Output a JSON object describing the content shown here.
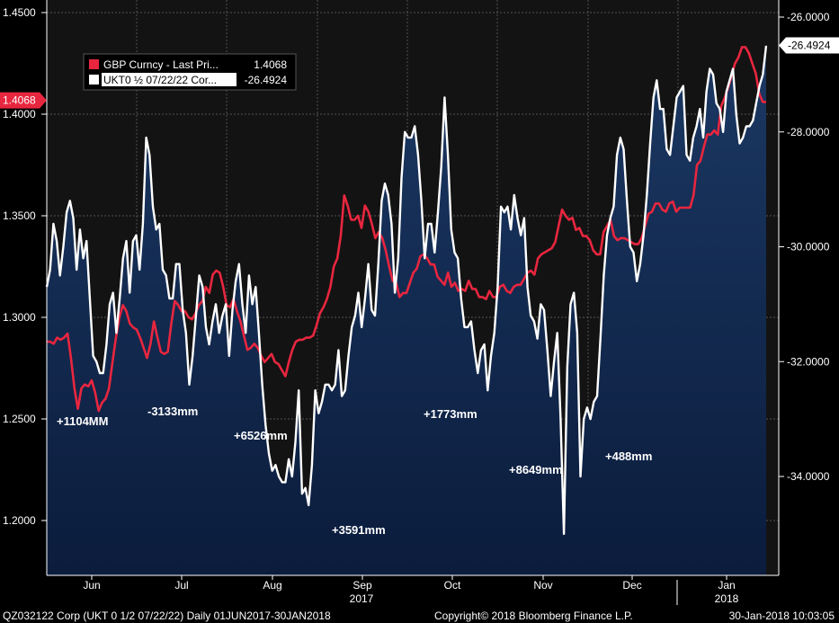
{
  "chart_data": {
    "type": "line",
    "left_axis": {
      "ylim": [
        1.17,
        1.455
      ],
      "ticks": [
        "1.4500",
        "1.4000",
        "1.3500",
        "1.3000",
        "1.2500",
        "1.2000"
      ],
      "tick_values": [
        1.45,
        1.4,
        1.35,
        1.3,
        1.25,
        1.2
      ],
      "last_value_label": "1.4068",
      "last_value": 1.4068
    },
    "right_axis": {
      "ylim": [
        -35.6,
        -25.8
      ],
      "ticks": [
        "-26.0000",
        "-28.0000",
        "-30.0000",
        "-32.0000",
        "-34.0000"
      ],
      "tick_values": [
        -26,
        -28,
        -30,
        -32,
        -34
      ],
      "last_value_label": "-26.4924",
      "last_value": -26.4924
    },
    "x_axis": {
      "months": [
        "Jun",
        "Jul",
        "Aug",
        "Sep",
        "Oct",
        "Nov",
        "Dec",
        "Jan"
      ],
      "years": [
        "2017",
        "2018"
      ]
    },
    "legend": {
      "position": "top-left",
      "entries": [
        {
          "name": "GBP Curncy - Last Pri...",
          "value": "1.4068",
          "color": "#e8263f"
        },
        {
          "name": "UKT0 ½ 07/22/22 Cor...",
          "value": "-26.4924",
          "color": "#ffffff"
        }
      ]
    },
    "series": [
      {
        "name": "GBP Curncy",
        "axis": "left",
        "color": "#e8263f",
        "values": [
          1.288,
          1.288,
          1.287,
          1.29,
          1.289,
          1.29,
          1.292,
          1.28,
          1.265,
          1.255,
          1.265,
          1.267,
          1.266,
          1.269,
          1.263,
          1.254,
          1.258,
          1.26,
          1.265,
          1.278,
          1.29,
          1.3,
          1.306,
          1.303,
          1.297,
          1.295,
          1.294,
          1.29,
          1.285,
          1.28,
          1.287,
          1.298,
          1.29,
          1.283,
          1.282,
          1.283,
          1.297,
          1.308,
          1.306,
          1.303,
          1.303,
          1.3,
          1.299,
          1.302,
          1.306,
          1.308,
          1.315,
          1.312,
          1.321,
          1.323,
          1.322,
          1.315,
          1.306,
          1.305,
          1.309,
          1.303,
          1.298,
          1.291,
          1.284,
          1.285,
          1.287,
          1.285,
          1.281,
          1.278,
          1.28,
          1.282,
          1.278,
          1.277,
          1.274,
          1.271,
          1.278,
          1.284,
          1.288,
          1.289,
          1.289,
          1.29,
          1.29,
          1.291,
          1.296,
          1.302,
          1.305,
          1.309,
          1.315,
          1.325,
          1.329,
          1.34,
          1.36,
          1.355,
          1.348,
          1.348,
          1.35,
          1.344,
          1.355,
          1.352,
          1.346,
          1.339,
          1.342,
          1.339,
          1.333,
          1.325,
          1.318,
          1.317,
          1.31,
          1.312,
          1.312,
          1.317,
          1.322,
          1.324,
          1.33,
          1.331,
          1.329,
          1.326,
          1.326,
          1.32,
          1.318,
          1.316,
          1.322,
          1.315,
          1.317,
          1.313,
          1.314,
          1.313,
          1.318,
          1.314,
          1.314,
          1.31,
          1.31,
          1.309,
          1.313,
          1.31,
          1.31,
          1.315,
          1.316,
          1.313,
          1.312,
          1.315,
          1.316,
          1.316,
          1.319,
          1.322,
          1.323,
          1.321,
          1.329,
          1.331,
          1.332,
          1.333,
          1.334,
          1.337,
          1.345,
          1.353,
          1.35,
          1.348,
          1.349,
          1.343,
          1.344,
          1.34,
          1.34,
          1.338,
          1.333,
          1.331,
          1.331,
          1.342,
          1.345,
          1.348,
          1.34,
          1.338,
          1.339,
          1.339,
          1.338,
          1.337,
          1.336,
          1.336,
          1.339,
          1.345,
          1.351,
          1.352,
          1.356,
          1.356,
          1.353,
          1.352,
          1.356,
          1.357,
          1.352,
          1.354,
          1.354,
          1.354,
          1.354,
          1.36,
          1.375,
          1.377,
          1.384,
          1.39,
          1.39,
          1.392,
          1.39,
          1.404,
          1.408,
          1.413,
          1.419,
          1.425,
          1.428,
          1.433,
          1.433,
          1.43,
          1.425,
          1.42,
          1.41,
          1.406,
          1.406
        ]
      },
      {
        "name": "UKT0 ½ 07/22/22 Corp",
        "axis": "right",
        "color": "#ffffff",
        "values": [
          -30.7,
          -30.4,
          -29.6,
          -29.9,
          -30.5,
          -30.0,
          -29.4,
          -29.2,
          -29.5,
          -30.4,
          -29.7,
          -30.2,
          -29.9,
          -30.9,
          -31.9,
          -32.0,
          -32.2,
          -32.2,
          -31.7,
          -31.0,
          -30.8,
          -31.5,
          -30.9,
          -30.2,
          -29.9,
          -30.8,
          -29.9,
          -29.8,
          -30.4,
          -29.6,
          -28.1,
          -28.4,
          -29.3,
          -29.7,
          -29.6,
          -30.4,
          -30.5,
          -30.9,
          -30.9,
          -30.3,
          -30.3,
          -31.1,
          -31.5,
          -32.4,
          -31.9,
          -31.2,
          -30.5,
          -30.7,
          -31.4,
          -31.7,
          -31.3,
          -31.0,
          -31.5,
          -31.2,
          -31.0,
          -31.9,
          -31.1,
          -30.6,
          -30.3,
          -31.0,
          -31.5,
          -30.5,
          -31.0,
          -30.7,
          -31.5,
          -32.4,
          -33.1,
          -33.6,
          -33.9,
          -33.8,
          -34.0,
          -34.1,
          -34.1,
          -33.7,
          -34.0,
          -33.4,
          -32.5,
          -34.3,
          -34.2,
          -34.5,
          -33.8,
          -32.5,
          -32.9,
          -32.7,
          -32.4,
          -32.4,
          -32.5,
          -32.4,
          -31.8,
          -32.6,
          -32.5,
          -31.9,
          -31.4,
          -31.2,
          -30.8,
          -31.4,
          -30.9,
          -30.3,
          -31.1,
          -31.2,
          -30.3,
          -29.2,
          -28.9,
          -29.1,
          -29.6,
          -30.8,
          -30.2,
          -28.8,
          -28.0,
          -28.1,
          -28.1,
          -27.9,
          -28.4,
          -29.2,
          -30.2,
          -29.6,
          -29.6,
          -30.1,
          -29.4,
          -28.6,
          -27.4,
          -28.4,
          -29.7,
          -30.1,
          -30.2,
          -30.9,
          -31.4,
          -31.4,
          -31.3,
          -31.8,
          -32.2,
          -31.8,
          -31.7,
          -32.5,
          -31.9,
          -31.5,
          -30.7,
          -29.3,
          -29.4,
          -29.3,
          -29.7,
          -29.1,
          -29.5,
          -29.8,
          -29.5,
          -30.7,
          -31.2,
          -31.3,
          -31.6,
          -31.0,
          -31.1,
          -31.8,
          -32.6,
          -32.0,
          -31.5,
          -33.0,
          -35.0,
          -32.1,
          -31.0,
          -30.8,
          -31.5,
          -34.0,
          -33.0,
          -32.8,
          -33.0,
          -32.7,
          -32.6,
          -31.6,
          -30.5,
          -29.8,
          -29.5,
          -29.3,
          -28.4,
          -28.1,
          -28.3,
          -29.2,
          -30.0,
          -30.1,
          -30.6,
          -30.3,
          -29.8,
          -29.1,
          -28.2,
          -27.4,
          -27.1,
          -27.6,
          -27.6,
          -28.3,
          -28.4,
          -27.9,
          -27.4,
          -27.3,
          -27.2,
          -28.4,
          -28.5,
          -28.1,
          -27.9,
          -27.6,
          -28.1,
          -27.3,
          -26.9,
          -27.0,
          -27.5,
          -27.6,
          -28.0,
          -27.3,
          -27.1,
          -26.9,
          -27.7,
          -28.2,
          -28.1,
          -27.9,
          -27.9,
          -27.8,
          -27.5,
          -27.2,
          -27.0,
          -26.5
        ]
      }
    ],
    "annotations": [
      "+1104MM",
      "-3133mm",
      "+6526mm",
      "+3591mm",
      "+1773mm",
      "+8649mm",
      "+488mm"
    ]
  },
  "footer": {
    "left": "QZ032122 Corp (UKT 0 1/2 07/22/22)  Daily 01JUN2017-30JAN2018",
    "center": "Copyright© 2018 Bloomberg Finance L.P.",
    "right": "30-Jan-2018 10:03:05"
  },
  "colors": {
    "background": "#000000",
    "plot_background": "#151515",
    "fill_top": "#16305a",
    "fill_bottom": "#0a1a38",
    "gbp_line": "#e8263f",
    "ukt_line": "#ffffff"
  }
}
